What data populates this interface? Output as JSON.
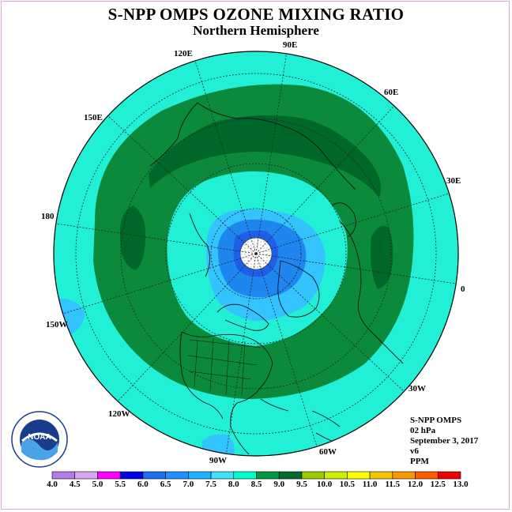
{
  "title": "S-NPP OMPS OZONE MIXING RATIO",
  "subtitle": "Northern Hemisphere",
  "longitude_labels": [
    "90E",
    "60E",
    "30E",
    "0",
    "30W",
    "60W",
    "90W",
    "120W",
    "150W",
    "180",
    "150E",
    "120E"
  ],
  "info": {
    "instrument": "S-NPP OMPS",
    "level": "02 hPa",
    "date": "September 3, 2017",
    "version": "v6",
    "units": "PPM"
  },
  "logo_text": "NOAA",
  "colorbar": {
    "ticks": [
      "4.0",
      "4.5",
      "5.0",
      "5.5",
      "6.0",
      "6.5",
      "7.0",
      "7.5",
      "8.0",
      "8.5",
      "9.0",
      "9.5",
      "10.0",
      "10.5",
      "11.0",
      "11.5",
      "12.0",
      "12.5",
      "13.0"
    ],
    "colors": [
      "#b57be6",
      "#d9a7f2",
      "#ff00ff",
      "#0000e6",
      "#1e6ff0",
      "#1e90ff",
      "#1fb4ff",
      "#40e0ff",
      "#00ffd0",
      "#009944",
      "#006b2a",
      "#99cc00",
      "#ccee00",
      "#ffff00",
      "#f5c400",
      "#f59a00",
      "#ff5a00",
      "#ee0000",
      "#8b5a3c"
    ]
  },
  "colors": {
    "cyan": "#22f0d6",
    "dark_green": "#0b8a3c",
    "darker_green": "#00672a",
    "light_blue": "#33c3ff",
    "blue": "#1f86f0",
    "deep_blue": "#1f5fe8"
  }
}
